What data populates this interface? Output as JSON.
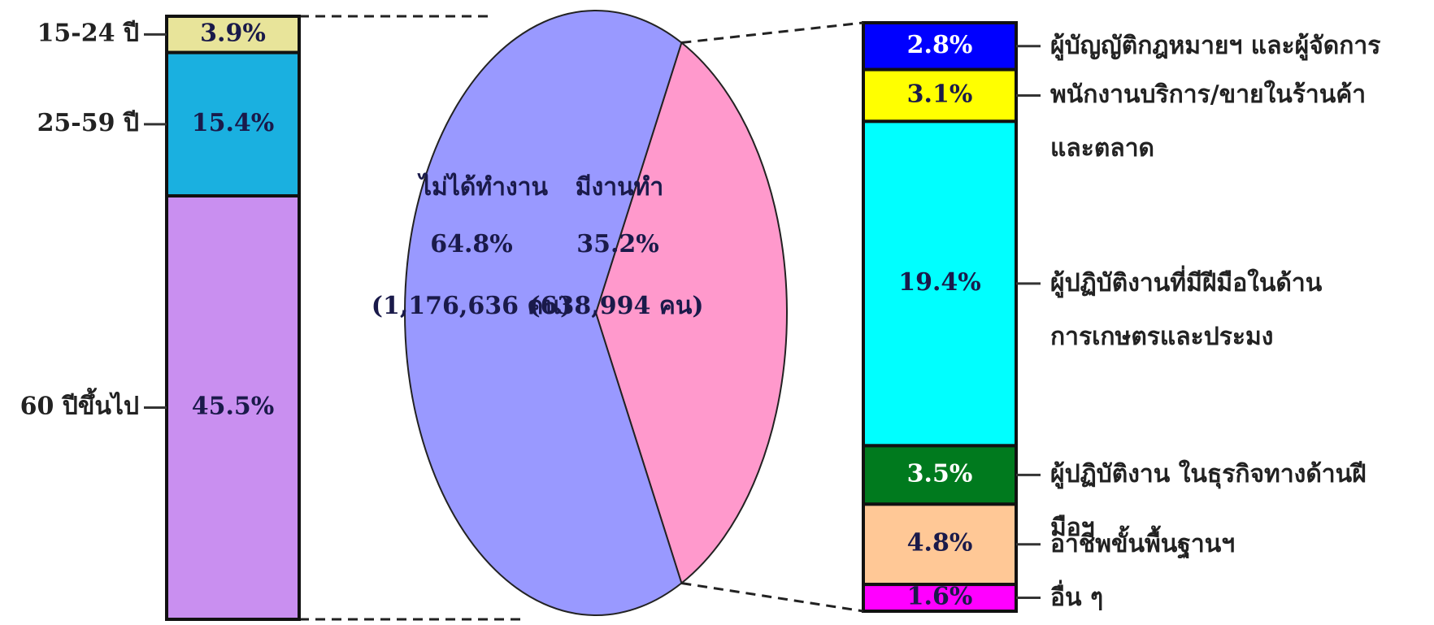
{
  "chart_data": [
    {
      "type": "pie",
      "categories": [
        "ไม่ได้ทำงาน",
        "มีงานทำ"
      ],
      "values": [
        64.8,
        35.2
      ],
      "value_labels": [
        "64.8%",
        "35.2%"
      ],
      "count_labels": [
        "(1,176,636 คน)",
        "(638,994 คน)"
      ],
      "colors": [
        "#9999ff",
        "#ff99cc"
      ]
    },
    {
      "type": "stacked-bar",
      "categories": [
        "15-24 ปี",
        "25-59 ปี",
        "60 ปีขึ้นไป"
      ],
      "values": [
        3.9,
        15.4,
        45.5
      ],
      "value_labels": [
        "3.9%",
        "15.4%",
        "45.5%"
      ],
      "colors": [
        "#e8e49a",
        "#1ab0e0",
        "#c98ff0"
      ]
    },
    {
      "type": "stacked-bar",
      "categories": [
        "ผู้บัญญัติกฎหมายฯ และผู้จัดการ",
        "พนักงานบริการ/ขายในร้านค้าและตลาด",
        "ผู้ปฏิบัติงานที่มีฝีมือในด้านการเกษตรและประมง",
        "ผู้ปฏิบัติงาน ในธุรกิจทางด้านฝีมือฯ",
        "อาชีพขั้นพื้นฐานฯ",
        "อื่น ๆ"
      ],
      "values": [
        2.8,
        3.1,
        19.4,
        3.5,
        4.8,
        1.6
      ],
      "value_labels": [
        "2.8%",
        "3.1%",
        "19.4%",
        "3.5%",
        "4.8%",
        "1.6%"
      ],
      "colors": [
        "#0000ff",
        "#ffff00",
        "#00ffff",
        "#007a1e",
        "#ffc896",
        "#ff00ff"
      ]
    }
  ]
}
